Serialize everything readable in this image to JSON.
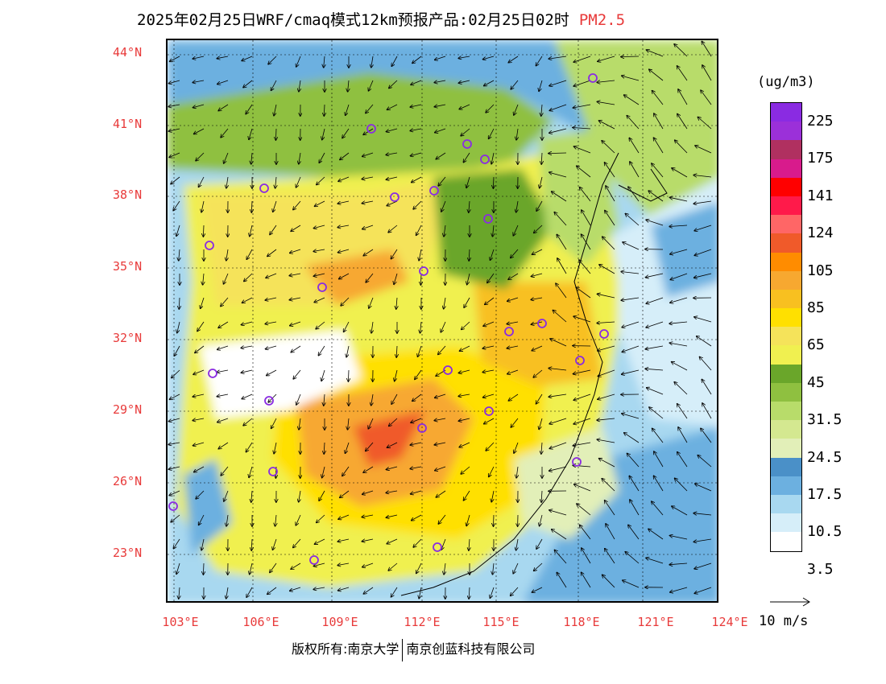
{
  "title": {
    "main": "2025年02月25日WRF/cmaq模式12km预报产品:02月25日02时",
    "product": "PM2.5"
  },
  "map": {
    "lat_labels": [
      "44°N",
      "41°N",
      "38°N",
      "35°N",
      "32°N",
      "29°N",
      "26°N",
      "23°N"
    ],
    "lon_labels": [
      "103°E",
      "106°E",
      "109°E",
      "112°E",
      "115°E",
      "118°E",
      "121°E",
      "124°E"
    ],
    "cities": 25
  },
  "legend": {
    "unit": "(ug/m3)",
    "colors": [
      "#8a2be2",
      "#9b30d9",
      "#b03060",
      "#d81b8c",
      "#ff0000",
      "#ff1a4a",
      "#ff6666",
      "#f05a2a",
      "#ff8c00",
      "#f7a830",
      "#f8c020",
      "#ffe000",
      "#f5e35a",
      "#f0f050",
      "#6aa62a",
      "#8fc040",
      "#b8dc6a",
      "#d4e890",
      "#e2efb8",
      "#4a90c8",
      "#6cb0e0",
      "#a8d8f0",
      "#d6eef9",
      "#ffffff"
    ],
    "labels": [
      "225",
      "175",
      "141",
      "124",
      "105",
      "85",
      "65",
      "45",
      "31.5",
      "24.5",
      "17.5",
      "10.5",
      "3.5"
    ]
  },
  "wind": {
    "label": "10 m/s"
  },
  "copyright": {
    "left": "版权所有:南京大学",
    "right": "南京创蓝科技有限公司"
  }
}
